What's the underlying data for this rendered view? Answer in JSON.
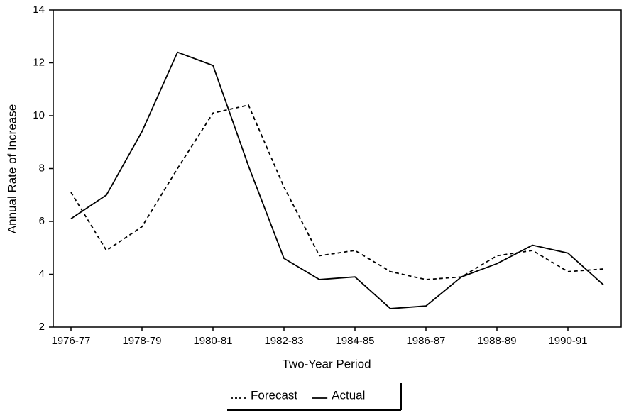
{
  "chart_data": {
    "type": "line",
    "x_label": "Two-Year Period",
    "y_label": "Annual Rate of Increase",
    "categories": [
      "1976-77",
      null,
      "1978-79",
      null,
      "1980-81",
      null,
      "1982-83",
      null,
      "1984-85",
      null,
      "1986-87",
      null,
      "1988-89",
      null,
      "1990-91",
      null
    ],
    "series": [
      {
        "name": "Forecast",
        "color": "#000000",
        "dash": "dashed",
        "values": [
          7.1,
          4.9,
          5.8,
          8.0,
          10.1,
          10.4,
          7.3,
          4.7,
          4.9,
          4.1,
          3.8,
          3.9,
          4.7,
          4.9,
          4.1,
          4.2
        ]
      },
      {
        "name": "Actual",
        "color": "#000000",
        "dash": "solid",
        "values": [
          6.1,
          7.0,
          9.4,
          12.4,
          11.9,
          8.1,
          4.6,
          3.8,
          3.9,
          2.7,
          2.8,
          3.9,
          4.4,
          5.1,
          4.8,
          3.6
        ]
      }
    ],
    "ylim": [
      2,
      14
    ],
    "yticks": [
      2,
      4,
      6,
      8,
      10,
      12,
      14
    ],
    "legend": "bottom"
  }
}
